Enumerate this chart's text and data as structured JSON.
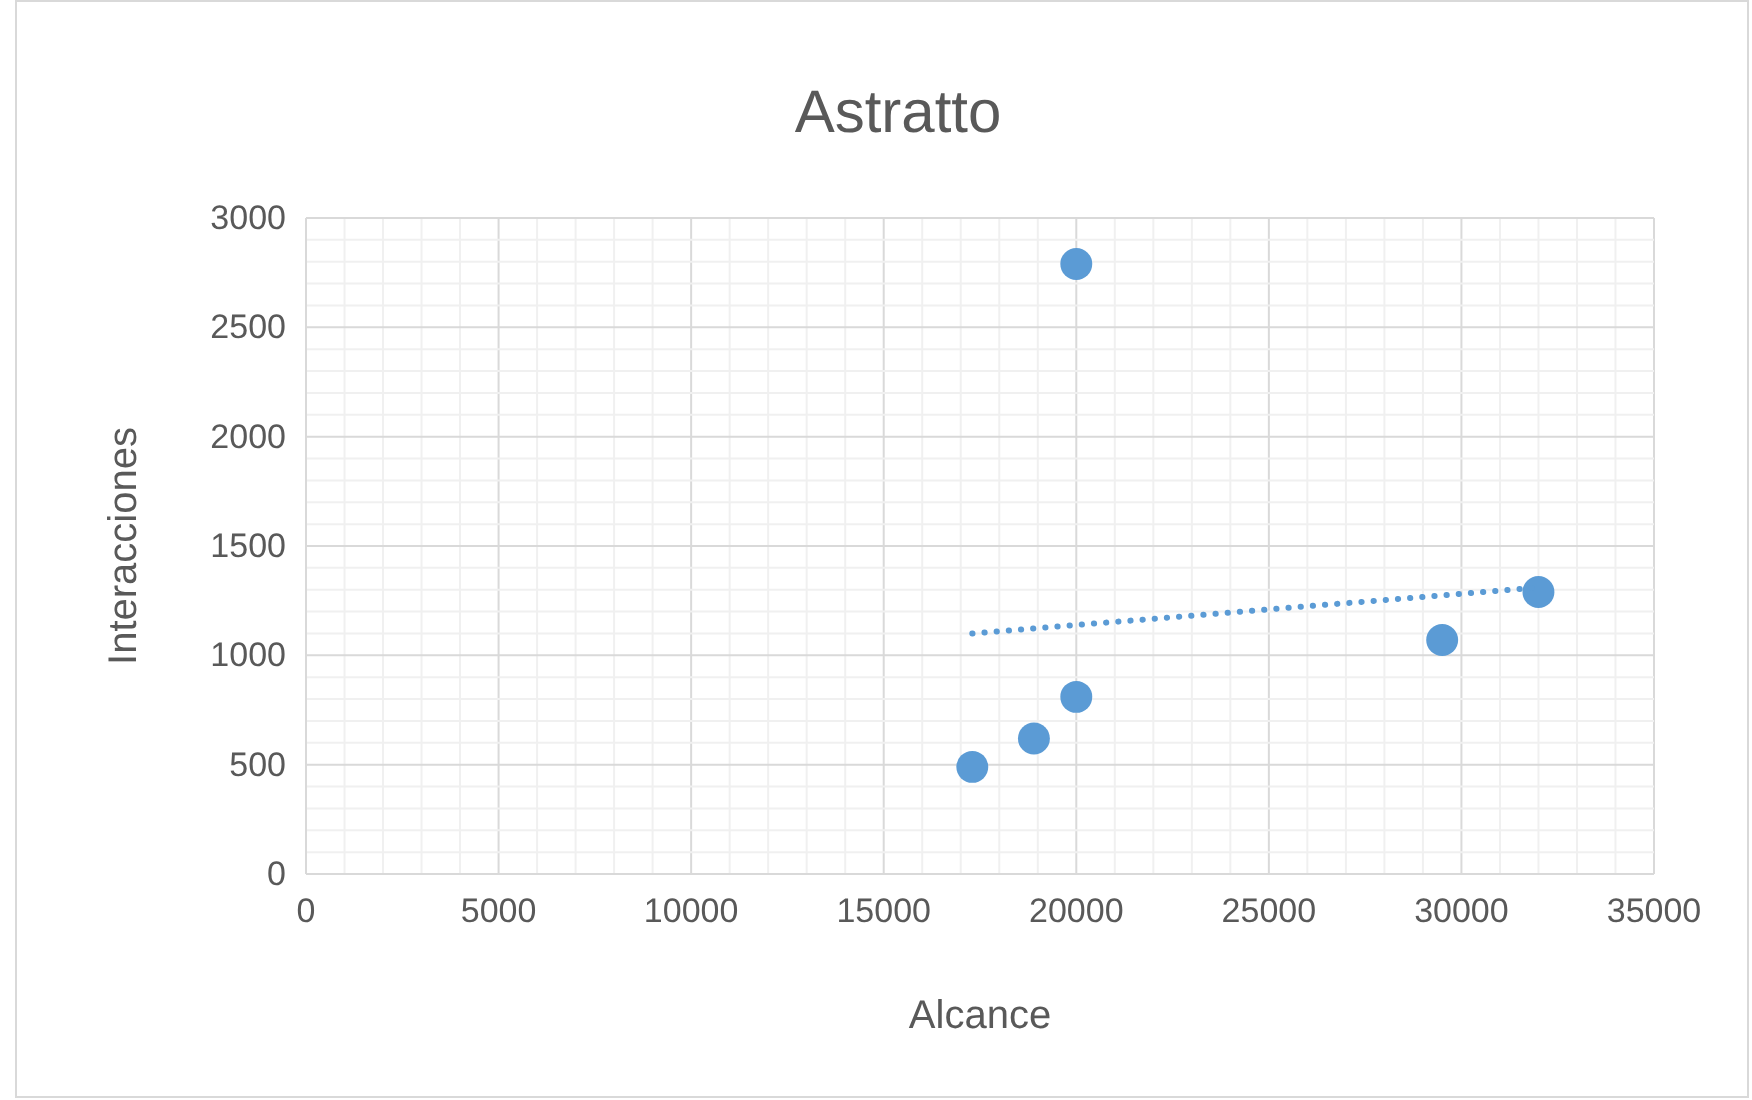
{
  "chart_data": {
    "type": "scatter",
    "title": "Astratto",
    "xlabel": "Alcance",
    "ylabel": "Interacciones",
    "xlim": [
      0,
      35000
    ],
    "xticks": [
      0,
      5000,
      10000,
      15000,
      20000,
      25000,
      30000,
      35000
    ],
    "ylim": [
      0,
      3000
    ],
    "yticks": [
      0,
      500,
      1000,
      1500,
      2000,
      2500,
      3000
    ],
    "grid": true,
    "marker": "circle",
    "series": [
      {
        "color": "#5b9bd5",
        "x": [
          17300,
          18900,
          20000,
          20000,
          29500,
          32000
        ],
        "values": [
          490,
          620,
          810,
          2790,
          1070,
          1290
        ]
      },
      {
        "type": "line",
        "color": "#5b9bd5",
        "line_style": "dotted",
        "marker": "none",
        "x": [
          17300,
          32000
        ],
        "values": [
          1100,
          1310
        ]
      }
    ]
  }
}
